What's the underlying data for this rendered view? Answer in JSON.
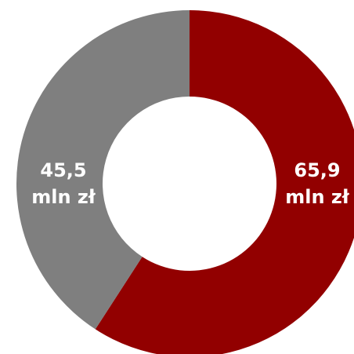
{
  "chart_data": {
    "type": "pie",
    "subtype": "donut",
    "categories": [
      "",
      ""
    ],
    "values": [
      65.9,
      45.5
    ],
    "colors": [
      "#920000",
      "#7f7f7f"
    ],
    "labels": [
      {
        "value_text": "65,9",
        "unit_text": "mln zł"
      },
      {
        "value_text": "45,5",
        "unit_text": "mln zł"
      }
    ],
    "title": "",
    "legend": "none"
  }
}
